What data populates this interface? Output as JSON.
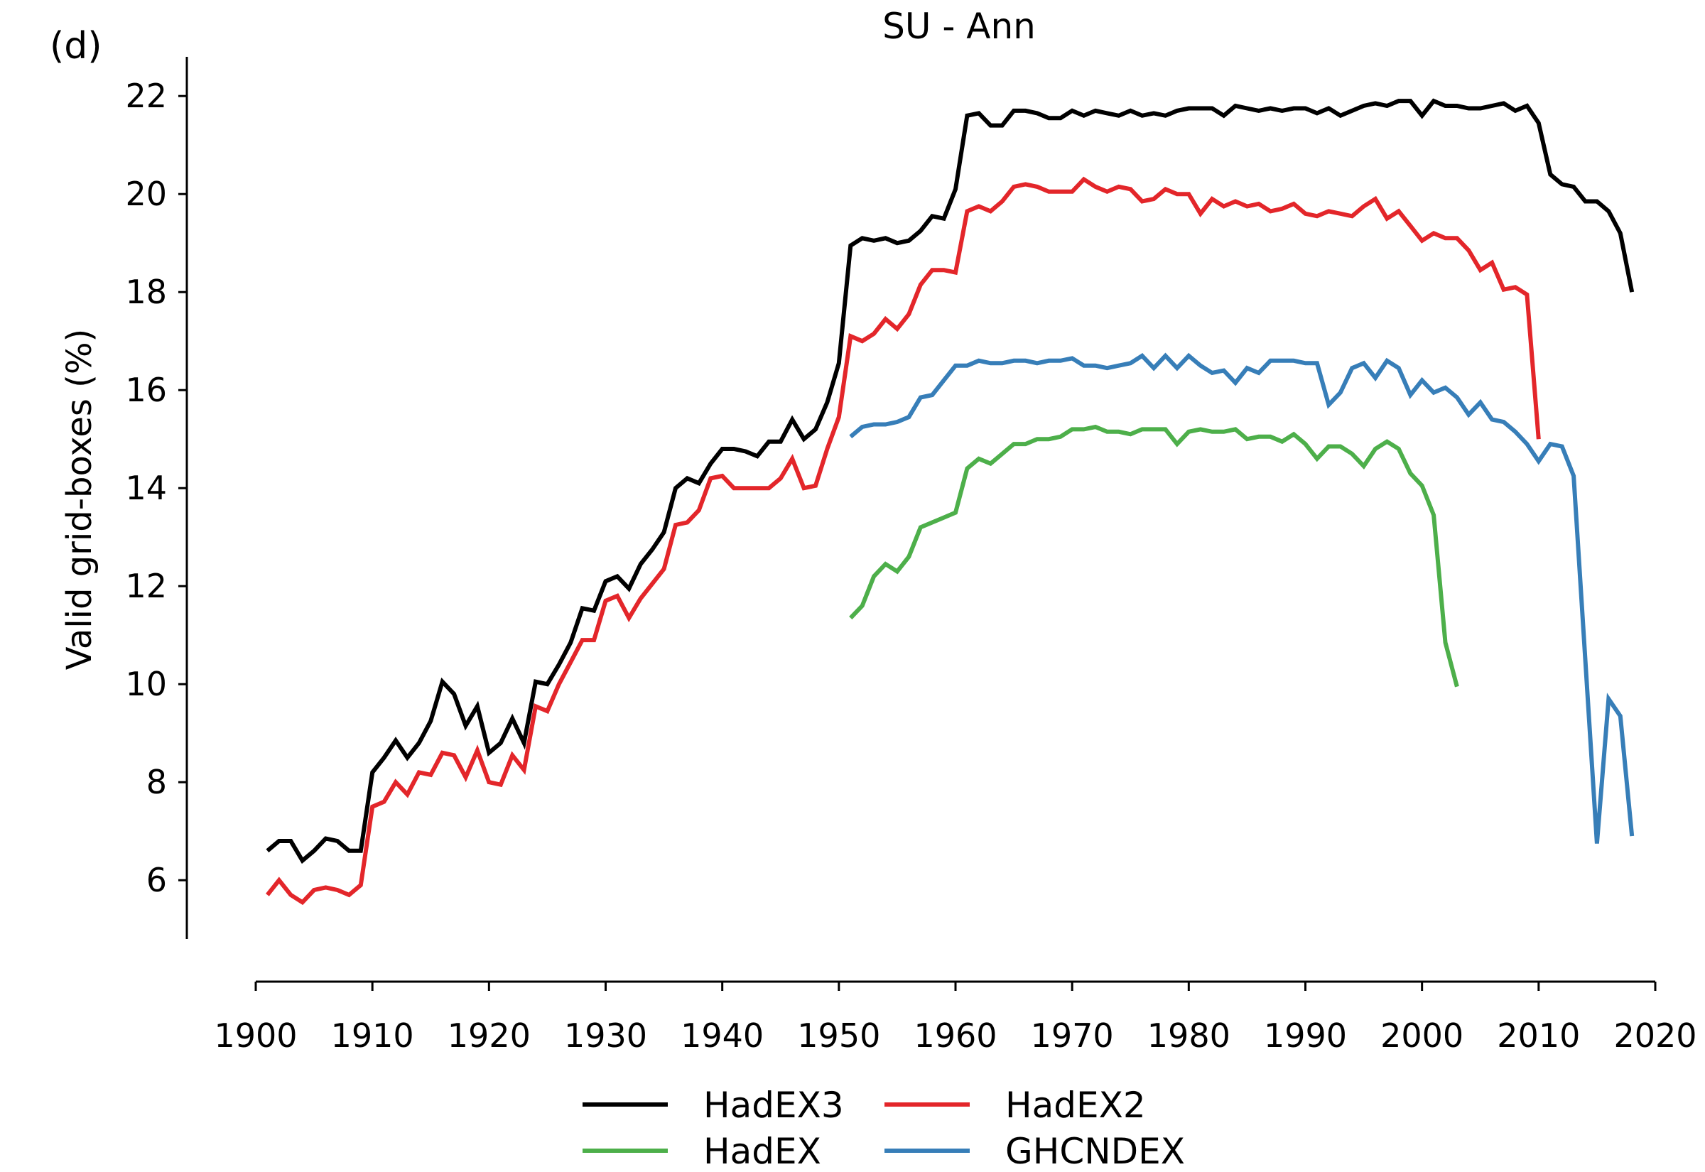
{
  "panel_label": "(d)",
  "chart_data": {
    "type": "line",
    "title": "SU - Ann",
    "xlabel": "",
    "ylabel": "Valid grid-boxes (%)",
    "xlim": [
      1900,
      2020
    ],
    "ylim": [
      4.8,
      22.8
    ],
    "xticks": [
      1900,
      1910,
      1920,
      1930,
      1940,
      1950,
      1960,
      1970,
      1980,
      1990,
      2000,
      2010,
      2020
    ],
    "yticks": [
      6,
      8,
      10,
      12,
      14,
      16,
      18,
      20,
      22
    ],
    "grid": false,
    "legend_position": "bottom-center",
    "series": [
      {
        "name": "HadEX3",
        "color": "#000000",
        "x_start": 1901,
        "values": [
          6.6,
          6.8,
          6.8,
          6.4,
          6.6,
          6.85,
          6.8,
          6.6,
          6.6,
          8.2,
          8.5,
          8.85,
          8.5,
          8.8,
          9.25,
          10.05,
          9.8,
          9.15,
          9.55,
          8.6,
          8.8,
          9.3,
          8.8,
          10.05,
          10.0,
          10.4,
          10.85,
          11.55,
          11.5,
          12.1,
          12.2,
          11.95,
          12.45,
          12.75,
          13.1,
          14.0,
          14.2,
          14.1,
          14.5,
          14.8,
          14.8,
          14.75,
          14.65,
          14.95,
          14.95,
          15.4,
          15.0,
          15.2,
          15.75,
          16.55,
          18.95,
          19.1,
          19.05,
          19.1,
          19.0,
          19.05,
          19.25,
          19.55,
          19.5,
          20.1,
          21.6,
          21.65,
          21.4,
          21.4,
          21.7,
          21.7,
          21.65,
          21.55,
          21.55,
          21.7,
          21.6,
          21.7,
          21.65,
          21.6,
          21.7,
          21.6,
          21.65,
          21.6,
          21.7,
          21.75,
          21.75,
          21.75,
          21.6,
          21.8,
          21.75,
          21.7,
          21.75,
          21.7,
          21.75,
          21.75,
          21.65,
          21.75,
          21.6,
          21.7,
          21.8,
          21.85,
          21.8,
          21.9,
          21.9,
          21.6,
          21.9,
          21.8,
          21.8,
          21.75,
          21.75,
          21.8,
          21.85,
          21.7,
          21.8,
          21.45,
          20.4,
          20.2,
          20.15,
          19.85,
          19.85,
          19.65,
          19.2,
          18.0
        ]
      },
      {
        "name": "HadEX2",
        "color": "#e3262a",
        "x_start": 1901,
        "values": [
          5.7,
          6.0,
          5.7,
          5.55,
          5.8,
          5.85,
          5.8,
          5.7,
          5.9,
          7.5,
          7.6,
          8.0,
          7.75,
          8.2,
          8.15,
          8.6,
          8.55,
          8.1,
          8.65,
          8.0,
          7.95,
          8.55,
          8.25,
          9.55,
          9.45,
          10.0,
          10.45,
          10.9,
          10.9,
          11.7,
          11.8,
          11.35,
          11.75,
          12.05,
          12.35,
          13.25,
          13.3,
          13.55,
          14.2,
          14.25,
          14.0,
          14.0,
          14.0,
          14.0,
          14.2,
          14.6,
          14.0,
          14.05,
          14.8,
          15.45,
          17.1,
          17.0,
          17.15,
          17.45,
          17.25,
          17.55,
          18.15,
          18.45,
          18.45,
          18.4,
          19.65,
          19.75,
          19.65,
          19.85,
          20.15,
          20.2,
          20.15,
          20.05,
          20.05,
          20.05,
          20.3,
          20.15,
          20.05,
          20.15,
          20.1,
          19.85,
          19.9,
          20.1,
          20.0,
          20.0,
          19.6,
          19.9,
          19.75,
          19.85,
          19.75,
          19.8,
          19.65,
          19.7,
          19.8,
          19.6,
          19.55,
          19.65,
          19.6,
          19.55,
          19.75,
          19.9,
          19.5,
          19.65,
          19.35,
          19.05,
          19.2,
          19.1,
          19.1,
          18.85,
          18.45,
          18.6,
          18.05,
          18.1,
          17.95,
          15.0
        ]
      },
      {
        "name": "HadEX",
        "color": "#4daf4a",
        "x_start": 1951,
        "values": [
          11.35,
          11.6,
          12.2,
          12.45,
          12.3,
          12.6,
          13.2,
          13.3,
          13.4,
          13.5,
          14.4,
          14.6,
          14.5,
          14.7,
          14.9,
          14.9,
          15.0,
          15.0,
          15.05,
          15.2,
          15.2,
          15.25,
          15.15,
          15.15,
          15.1,
          15.2,
          15.2,
          15.2,
          14.9,
          15.15,
          15.2,
          15.15,
          15.15,
          15.2,
          15.0,
          15.05,
          15.05,
          14.95,
          15.1,
          14.9,
          14.6,
          14.85,
          14.85,
          14.7,
          14.45,
          14.8,
          14.95,
          14.8,
          14.3,
          14.05,
          13.45,
          10.85,
          9.95
        ]
      },
      {
        "name": "GHCNDEX",
        "color": "#377eb8",
        "x_start": 1951,
        "values": [
          15.05,
          15.25,
          15.3,
          15.3,
          15.35,
          15.45,
          15.85,
          15.9,
          16.2,
          16.5,
          16.5,
          16.6,
          16.55,
          16.55,
          16.6,
          16.6,
          16.55,
          16.6,
          16.6,
          16.65,
          16.5,
          16.5,
          16.45,
          16.5,
          16.55,
          16.7,
          16.45,
          16.7,
          16.45,
          16.7,
          16.5,
          16.35,
          16.4,
          16.15,
          16.45,
          16.35,
          16.6,
          16.6,
          16.6,
          16.55,
          16.55,
          15.7,
          15.95,
          16.45,
          16.55,
          16.25,
          16.6,
          16.45,
          15.9,
          16.2,
          15.95,
          16.05,
          15.85,
          15.5,
          15.75,
          15.4,
          15.35,
          15.15,
          14.9,
          14.55,
          14.9,
          14.85,
          14.25,
          10.5,
          6.75,
          9.7,
          9.35,
          6.9
        ]
      }
    ]
  }
}
